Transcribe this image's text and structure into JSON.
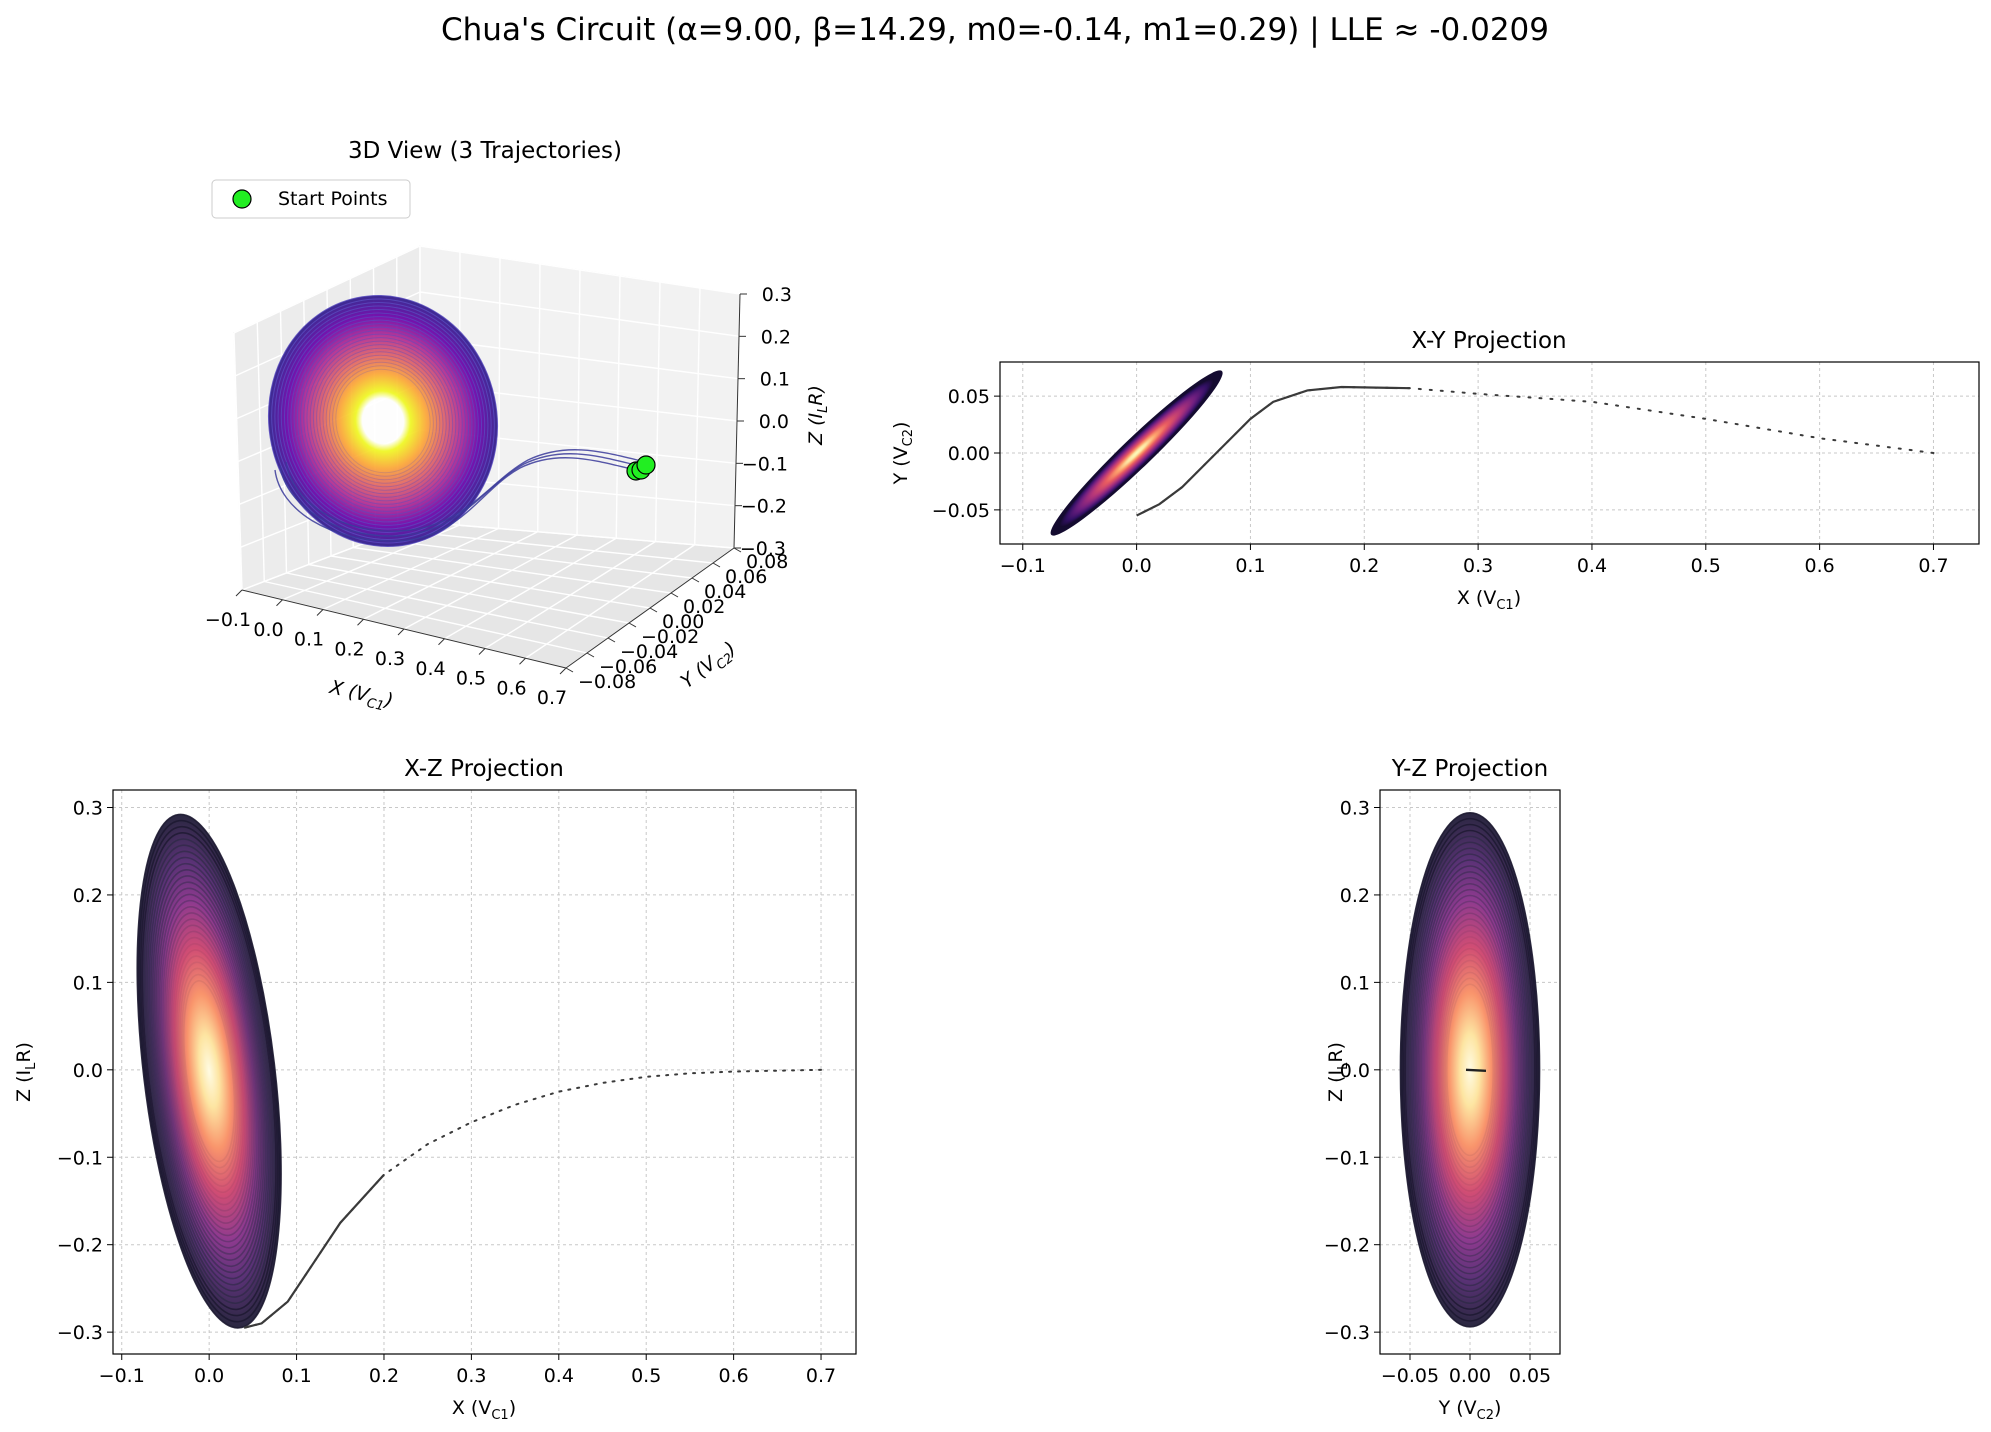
{
  "figure": {
    "suptitle": "Chua's Circuit (α=9.00, β=14.29, m0=-0.14, m1=0.29) | LLE ≈ -0.0209"
  },
  "chart_data": [
    {
      "id": "view3d",
      "type": "line",
      "projection": "3d",
      "title": "3D View (3 Trajectories)",
      "xlabel": "X (V_C1)",
      "ylabel": "Y (V_C2)",
      "zlabel": "Z (I_L R)",
      "xlim": [
        -0.1,
        0.7
      ],
      "ylim": [
        -0.08,
        0.08
      ],
      "zlim": [
        -0.3,
        0.3
      ],
      "xticks": [
        "−0.1",
        "0.0",
        "0.1",
        "0.2",
        "0.3",
        "0.4",
        "0.5",
        "0.6",
        "0.7"
      ],
      "yticks": [
        "−0.08",
        "−0.06",
        "−0.04",
        "−0.02",
        "0.00",
        "0.02",
        "0.04",
        "0.06",
        "0.08"
      ],
      "zticks": [
        "−0.3",
        "−0.2",
        "−0.1",
        "0.0",
        "0.1",
        "0.2",
        "0.3"
      ],
      "legend": {
        "label": "Start Points",
        "location": "upper-left",
        "marker_color": "#22ee22"
      },
      "series": [
        {
          "x0": 0.7,
          "y0": 0.0,
          "z0": 0.0,
          "color": "#3a3a9a"
        },
        {
          "x0": 0.69,
          "y0": 0.01,
          "z0": 0.01,
          "color": "#3a3a9a"
        },
        {
          "x0": 0.71,
          "y0": -0.01,
          "z0": -0.01,
          "color": "#3a3a9a"
        }
      ],
      "colormap": "plasma",
      "grid": true
    },
    {
      "id": "xy",
      "type": "line",
      "title": "X-Y Projection",
      "xlabel": "X (V_C1)",
      "ylabel": "Y (V_C2)",
      "xlim": [
        -0.12,
        0.74
      ],
      "ylim": [
        -0.08,
        0.08
      ],
      "xticks": [
        -0.1,
        0.0,
        0.1,
        0.2,
        0.3,
        0.4,
        0.5,
        0.6,
        0.7
      ],
      "yticks": [
        -0.05,
        0.0,
        0.05
      ],
      "series": [
        {
          "transient": [
            [
              0.7,
              0.0
            ],
            [
              0.6,
              0.013
            ],
            [
              0.5,
              0.03
            ],
            [
              0.4,
              0.045
            ],
            [
              0.3,
              0.052
            ],
            [
              0.24,
              0.057
            ],
            [
              0.18,
              0.058
            ],
            [
              0.15,
              0.055
            ],
            [
              0.12,
              0.045
            ],
            [
              0.1,
              0.03
            ],
            [
              0.08,
              0.01
            ],
            [
              0.06,
              -0.01
            ],
            [
              0.04,
              -0.03
            ],
            [
              0.02,
              -0.045
            ],
            [
              0.0,
              -0.055
            ]
          ],
          "attractor_outer": {
            "cx": 0.0,
            "cy": 0.0,
            "half_axis_x": 0.075,
            "half_axis_y": 0.072
          }
        }
      ],
      "colormap": "magma",
      "grid": true
    },
    {
      "id": "xz",
      "type": "line",
      "title": "X-Z Projection",
      "xlabel": "X (V_C1)",
      "ylabel": "Z (I_L R)",
      "xlim": [
        -0.11,
        0.74
      ],
      "ylim": [
        -0.325,
        0.32
      ],
      "xticks": [
        -0.1,
        0.0,
        0.1,
        0.2,
        0.3,
        0.4,
        0.5,
        0.6,
        0.7
      ],
      "yticks": [
        -0.3,
        -0.2,
        -0.1,
        0.0,
        0.1,
        0.2,
        0.3
      ],
      "series": [
        {
          "transient": [
            [
              0.7,
              0.0
            ],
            [
              0.65,
              -0.001
            ],
            [
              0.6,
              -0.002
            ],
            [
              0.55,
              -0.004
            ],
            [
              0.5,
              -0.008
            ],
            [
              0.45,
              -0.015
            ],
            [
              0.4,
              -0.025
            ],
            [
              0.35,
              -0.04
            ],
            [
              0.3,
              -0.06
            ],
            [
              0.25,
              -0.085
            ],
            [
              0.2,
              -0.12
            ],
            [
              0.15,
              -0.175
            ],
            [
              0.12,
              -0.22
            ],
            [
              0.09,
              -0.265
            ],
            [
              0.06,
              -0.29
            ],
            [
              0.04,
              -0.295
            ]
          ],
          "attractor_outer": {
            "x_at_top": -0.035,
            "z_top": 0.292,
            "x_at_bottom": 0.035,
            "z_bottom": -0.295,
            "half_width_x": 0.075
          }
        }
      ],
      "colormap": "magma",
      "grid": true
    },
    {
      "id": "yz",
      "type": "line",
      "title": "Y-Z Projection",
      "xlabel": "Y (V_C2)",
      "ylabel": "Z (I_L R)",
      "xlim": [
        -0.075,
        0.075
      ],
      "ylim": [
        -0.325,
        0.32
      ],
      "xticks": [
        -0.05,
        0.0,
        0.05
      ],
      "yticks": [
        -0.3,
        -0.2,
        -0.1,
        0.0,
        0.1,
        0.2,
        0.3
      ],
      "series": [
        {
          "attractor_outer": {
            "cy": 0.0,
            "cz": 0.0,
            "half_axis_y": 0.058,
            "half_axis_z": 0.294
          }
        }
      ],
      "colormap": "magma",
      "grid": true
    }
  ]
}
